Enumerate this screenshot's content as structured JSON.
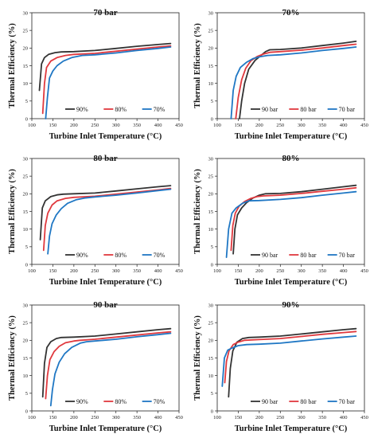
{
  "colors": {
    "dark": "#333333",
    "red": "#e0393e",
    "blue": "#1f77c4"
  },
  "chart_data": [
    {
      "type": "line",
      "title": "70 bar",
      "xlabel": "Turbine Inlet Temperature (°C)",
      "ylabel": "Thermal Efficiency (%)",
      "xlim": [
        0,
        450
      ],
      "ylim": [
        0,
        30
      ],
      "xticks": [
        "100",
        "150",
        "200",
        "250",
        "300",
        "350",
        "400",
        "450"
      ],
      "yticks": [
        "0",
        "5",
        "10",
        "15",
        "20",
        "25",
        "30"
      ],
      "legend": "bottom-right",
      "series": [
        {
          "name": "90%",
          "color": "dark",
          "x": [
            118,
            123,
            130,
            140,
            155,
            170,
            200,
            250,
            300,
            350,
            400,
            430
          ],
          "y": [
            8,
            15.5,
            17.3,
            18.2,
            18.7,
            18.9,
            19.0,
            19.3,
            19.9,
            20.5,
            21.0,
            21.3
          ]
        },
        {
          "name": "80%",
          "color": "red",
          "x": [
            126,
            130,
            135,
            145,
            160,
            180,
            200,
            250,
            300,
            350,
            400,
            430
          ],
          "y": [
            1.5,
            10,
            14.5,
            16.3,
            17.3,
            17.9,
            18.2,
            18.5,
            19.1,
            19.7,
            20.3,
            20.6
          ]
        },
        {
          "name": "70%",
          "color": "blue",
          "x": [
            133,
            137,
            142,
            150,
            160,
            175,
            195,
            220,
            250,
            300,
            350,
            400,
            430
          ],
          "y": [
            0,
            6,
            11.5,
            13.5,
            15,
            16.3,
            17.3,
            17.9,
            18.1,
            18.6,
            19.3,
            19.9,
            20.3
          ]
        }
      ]
    },
    {
      "type": "line",
      "title": "70%",
      "xlabel": "Turbine Inlet Temperature (°C)",
      "ylabel": "Thermal Efficiency (%)",
      "xlim": [
        0,
        450
      ],
      "ylim": [
        0,
        30
      ],
      "xticks": [
        "100",
        "150",
        "200",
        "250",
        "300",
        "350",
        "400",
        "450"
      ],
      "yticks": [
        "0",
        "5",
        "10",
        "15",
        "20",
        "25",
        "30"
      ],
      "legend": "bottom-right",
      "series": [
        {
          "name": "90 bar",
          "color": "dark",
          "x": [
            153,
            158,
            165,
            175,
            190,
            205,
            215,
            225,
            250,
            300,
            350,
            400,
            430
          ],
          "y": [
            0,
            5,
            10,
            14,
            16.5,
            18,
            19,
            19.5,
            19.6,
            20,
            20.7,
            21.4,
            21.9
          ]
        },
        {
          "name": "80 bar",
          "color": "red",
          "x": [
            144,
            150,
            158,
            168,
            180,
            195,
            210,
            225,
            250,
            300,
            350,
            400,
            430
          ],
          "y": [
            0,
            6,
            11,
            14.3,
            16.4,
            17.6,
            18.3,
            18.8,
            19,
            19.4,
            20,
            20.7,
            21.1
          ]
        },
        {
          "name": "70 bar",
          "color": "blue",
          "x": [
            133,
            138,
            145,
            155,
            170,
            185,
            200,
            220,
            250,
            300,
            350,
            400,
            430
          ],
          "y": [
            0,
            8,
            12,
            14.5,
            16,
            17,
            17.5,
            17.9,
            18.1,
            18.6,
            19.3,
            19.9,
            20.3
          ]
        }
      ]
    },
    {
      "type": "line",
      "title": "80 bar",
      "xlabel": "Turbine Inlet Temperature (°C)",
      "ylabel": "Thermal Efficiency (%)",
      "xlim": [
        0,
        450
      ],
      "ylim": [
        0,
        30
      ],
      "xticks": [
        "100",
        "150",
        "200",
        "250",
        "300",
        "350",
        "400",
        "450"
      ],
      "yticks": [
        "0",
        "5",
        "10",
        "15",
        "20",
        "25",
        "30"
      ],
      "legend": "bottom-right",
      "series": [
        {
          "name": "90%",
          "color": "dark",
          "x": [
            120,
            125,
            132,
            145,
            160,
            175,
            200,
            250,
            300,
            350,
            400,
            430
          ],
          "y": [
            7,
            16,
            18,
            19.2,
            19.7,
            19.9,
            20,
            20.2,
            20.8,
            21.4,
            22,
            22.3
          ]
        },
        {
          "name": "80%",
          "color": "red",
          "x": [
            128,
            132,
            138,
            148,
            160,
            180,
            200,
            250,
            300,
            350,
            400,
            430
          ],
          "y": [
            4,
            11,
            14.5,
            16.8,
            18,
            18.7,
            19,
            19.3,
            19.9,
            20.5,
            21.1,
            21.5
          ]
        },
        {
          "name": "70%",
          "color": "blue",
          "x": [
            138,
            142,
            148,
            158,
            170,
            185,
            205,
            225,
            250,
            300,
            350,
            400,
            430
          ],
          "y": [
            3,
            8,
            11.5,
            14,
            15.8,
            17.3,
            18.3,
            18.8,
            19.1,
            19.6,
            20.2,
            20.9,
            21.3
          ]
        }
      ]
    },
    {
      "type": "line",
      "title": "80%",
      "xlabel": "Turbine Inlet Temperature (°C)",
      "ylabel": "Thermal Efficiency (%)",
      "xlim": [
        0,
        450
      ],
      "ylim": [
        0,
        30
      ],
      "xticks": [
        "100",
        "150",
        "200",
        "250",
        "300",
        "350",
        "400",
        "450"
      ],
      "yticks": [
        "0",
        "5",
        "10",
        "15",
        "20",
        "25",
        "30"
      ],
      "legend": "bottom-right",
      "series": [
        {
          "name": "90 bar",
          "color": "dark",
          "x": [
            138,
            142,
            148,
            158,
            170,
            185,
            200,
            215,
            250,
            300,
            350,
            400,
            430
          ],
          "y": [
            3,
            10,
            14,
            16,
            17.5,
            18.8,
            19.6,
            20,
            20.1,
            20.6,
            21.3,
            22,
            22.4
          ]
        },
        {
          "name": "80 bar",
          "color": "red",
          "x": [
            133,
            137,
            143,
            152,
            165,
            180,
            195,
            210,
            250,
            300,
            350,
            400,
            430
          ],
          "y": [
            4,
            11,
            14.5,
            16.5,
            17.8,
            18.7,
            19.2,
            19.4,
            19.6,
            20.1,
            20.7,
            21.3,
            21.7
          ]
        },
        {
          "name": "70 bar",
          "color": "blue",
          "x": [
            122,
            127,
            135,
            145,
            160,
            175,
            200,
            250,
            300,
            350,
            400,
            430
          ],
          "y": [
            2,
            10,
            14.5,
            16,
            17.3,
            18,
            18.1,
            18.4,
            18.9,
            19.6,
            20.2,
            20.6
          ]
        }
      ]
    },
    {
      "type": "line",
      "title": "90 bar",
      "xlabel": "Turbine Inlet Temperature (°C)",
      "ylabel": "Thermal Efficiency (%)",
      "xlim": [
        0,
        450
      ],
      "ylim": [
        0,
        30
      ],
      "xticks": [
        "100",
        "150",
        "200",
        "250",
        "300",
        "350",
        "400",
        "450"
      ],
      "yticks": [
        "0",
        "5",
        "10",
        "15",
        "20",
        "25",
        "30"
      ],
      "legend": "bottom-right",
      "series": [
        {
          "name": "90%",
          "color": "dark",
          "x": [
            126,
            130,
            136,
            145,
            158,
            170,
            200,
            250,
            300,
            350,
            400,
            430
          ],
          "y": [
            4,
            13.5,
            18,
            19.6,
            20.5,
            20.8,
            20.9,
            21.2,
            21.8,
            22.4,
            23,
            23.3
          ]
        },
        {
          "name": "80%",
          "color": "red",
          "x": [
            133,
            137,
            143,
            153,
            165,
            180,
            200,
            215,
            250,
            300,
            350,
            400,
            430
          ],
          "y": [
            3.5,
            10,
            14.5,
            16.8,
            18.3,
            19.3,
            19.8,
            20,
            20.3,
            20.9,
            21.5,
            22.1,
            22.4
          ]
        },
        {
          "name": "70%",
          "color": "blue",
          "x": [
            145,
            149,
            155,
            165,
            178,
            195,
            215,
            230,
            250,
            300,
            350,
            400,
            430
          ],
          "y": [
            1.5,
            6,
            10.5,
            13.8,
            16.2,
            18,
            19.2,
            19.6,
            19.8,
            20.3,
            21,
            21.6,
            22
          ]
        }
      ]
    },
    {
      "type": "line",
      "title": "90%",
      "xlabel": "Turbine Inlet Temperature (°C)",
      "ylabel": "Thermal Efficiency (%)",
      "xlim": [
        0,
        450
      ],
      "ylim": [
        0,
        30
      ],
      "xticks": [
        "100",
        "150",
        "200",
        "250",
        "300",
        "350",
        "400",
        "450"
      ],
      "yticks": [
        "0",
        "5",
        "10",
        "15",
        "20",
        "25",
        "30"
      ],
      "legend": "bottom-right",
      "series": [
        {
          "name": "90 bar",
          "color": "dark",
          "x": [
            127,
            131,
            137,
            147,
            160,
            175,
            200,
            250,
            300,
            350,
            400,
            430
          ],
          "y": [
            4,
            12,
            17,
            19.5,
            20.5,
            20.8,
            20.9,
            21.2,
            21.8,
            22.4,
            23,
            23.3
          ]
        },
        {
          "name": "80 bar",
          "color": "red",
          "x": [
            118,
            122,
            128,
            138,
            150,
            165,
            200,
            250,
            300,
            350,
            400,
            430
          ],
          "y": [
            8,
            14,
            17,
            18.8,
            19.5,
            20,
            20.2,
            20.5,
            21.1,
            21.7,
            22.2,
            22.5
          ]
        },
        {
          "name": "70 bar",
          "color": "blue",
          "x": [
            112,
            117,
            125,
            135,
            150,
            170,
            200,
            250,
            300,
            350,
            400,
            430
          ],
          "y": [
            7,
            15,
            17.2,
            17.8,
            18.5,
            18.8,
            18.9,
            19.2,
            19.8,
            20.4,
            20.9,
            21.2
          ]
        }
      ]
    }
  ]
}
